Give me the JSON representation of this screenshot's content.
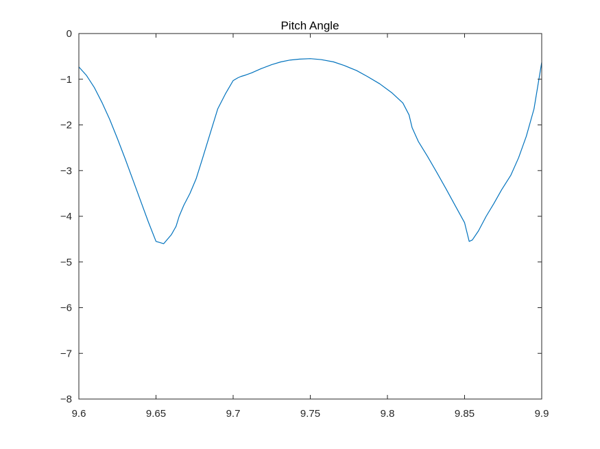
{
  "chart_data": {
    "type": "line",
    "title": "Pitch Angle",
    "xlabel": "",
    "ylabel": "",
    "xlim": [
      9.6,
      9.9
    ],
    "ylim": [
      -8,
      0
    ],
    "grid": false,
    "x_ticks": [
      9.6,
      9.65,
      9.7,
      9.75,
      9.8,
      9.85,
      9.9
    ],
    "x_tick_labels": [
      "9.6",
      "9.65",
      "9.7",
      "9.75",
      "9.8",
      "9.85",
      "9.9"
    ],
    "y_ticks": [
      0,
      -1,
      -2,
      -3,
      -4,
      -5,
      -6,
      -7,
      -8
    ],
    "y_tick_labels": [
      "0",
      "−1",
      "−2",
      "−3",
      "−4",
      "−5",
      "−6",
      "−7",
      "−8"
    ],
    "series": [
      {
        "color": "#0072BD",
        "x": [
          9.6,
          9.605,
          9.61,
          9.615,
          9.62,
          9.625,
          9.63,
          9.635,
          9.64,
          9.645,
          9.65,
          9.655,
          9.66,
          9.663,
          9.665,
          9.668,
          9.672,
          9.676,
          9.68,
          9.685,
          9.69,
          9.695,
          9.7,
          9.703,
          9.705,
          9.708,
          9.712,
          9.718,
          9.725,
          9.731,
          9.737,
          9.743,
          9.75,
          9.757,
          9.765,
          9.772,
          9.78,
          9.787,
          9.795,
          9.803,
          9.81,
          9.814,
          9.816,
          9.82,
          9.826,
          9.832,
          9.838,
          9.844,
          9.85,
          9.853,
          9.855,
          9.859,
          9.864,
          9.869,
          9.874,
          9.88,
          9.885,
          9.89,
          9.895,
          9.9
        ],
        "y": [
          -0.73,
          -0.92,
          -1.18,
          -1.51,
          -1.88,
          -2.3,
          -2.74,
          -3.2,
          -3.66,
          -4.12,
          -4.55,
          -4.6,
          -4.4,
          -4.22,
          -4.0,
          -3.76,
          -3.5,
          -3.18,
          -2.75,
          -2.2,
          -1.65,
          -1.32,
          -1.03,
          -0.97,
          -0.94,
          -0.91,
          -0.86,
          -0.77,
          -0.68,
          -0.62,
          -0.58,
          -0.56,
          -0.55,
          -0.57,
          -0.62,
          -0.7,
          -0.81,
          -0.94,
          -1.1,
          -1.3,
          -1.52,
          -1.78,
          -2.06,
          -2.36,
          -2.69,
          -3.04,
          -3.4,
          -3.77,
          -4.14,
          -4.55,
          -4.52,
          -4.32,
          -4.0,
          -3.72,
          -3.42,
          -3.1,
          -2.72,
          -2.25,
          -1.65,
          -0.63
        ]
      }
    ]
  }
}
